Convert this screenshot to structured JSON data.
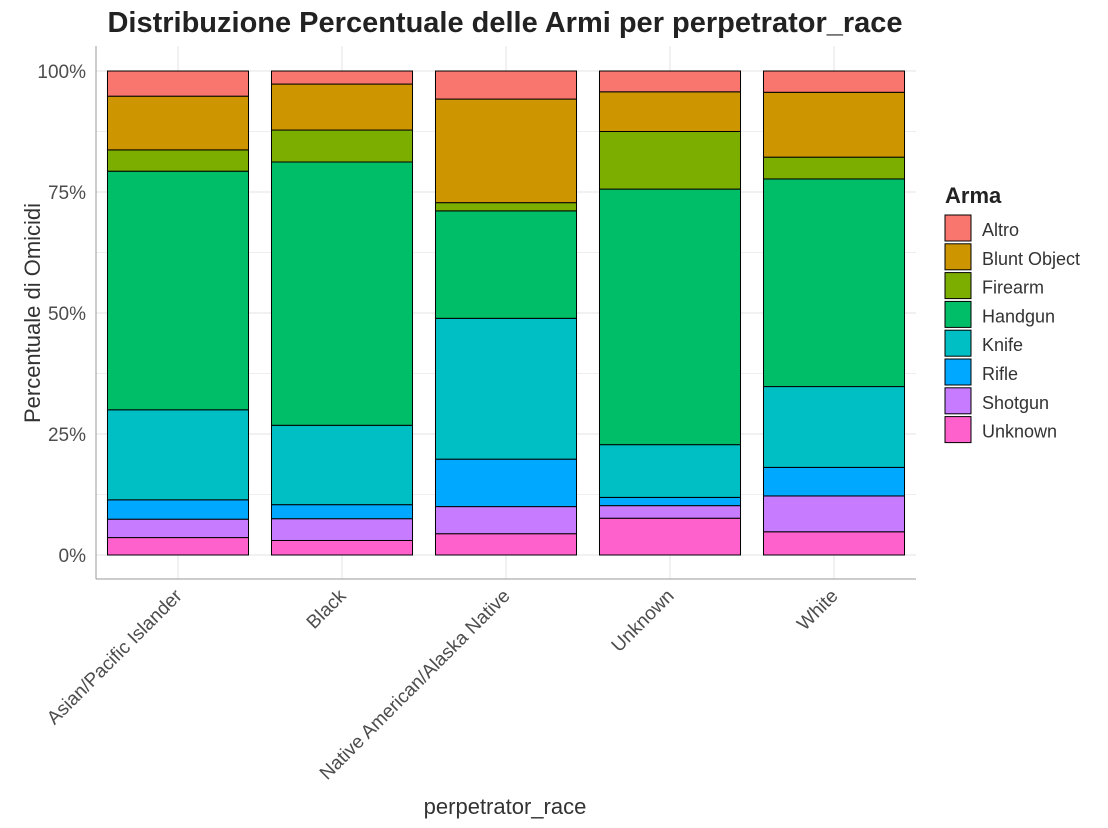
{
  "chart_data": {
    "type": "bar",
    "stacked": "percent",
    "title": "Distribuzione Percentuale delle Armi per perpetrator_race",
    "xlabel": "perpetrator_race",
    "ylabel": "Percentuale di Omicidi",
    "ylim": [
      0,
      100
    ],
    "yticks": [
      "0%",
      "25%",
      "50%",
      "75%",
      "100%"
    ],
    "grid": true,
    "legend_position": "right",
    "legend_title": "Arma",
    "categories": [
      "Asian/Pacific Islander",
      "Black",
      "Native American/Alaska Native",
      "Unknown",
      "White"
    ],
    "series": [
      {
        "name": "Altro",
        "color": "#F8766D",
        "values": [
          5.2,
          2.7,
          5.8,
          4.3,
          4.4
        ]
      },
      {
        "name": "Blunt Object",
        "color": "#CD9600",
        "values": [
          11.1,
          9.5,
          21.4,
          8.2,
          13.4
        ]
      },
      {
        "name": "Firearm",
        "color": "#7CAE00",
        "values": [
          4.4,
          6.6,
          1.7,
          11.9,
          4.5
        ]
      },
      {
        "name": "Handgun",
        "color": "#00BE67",
        "values": [
          49.3,
          54.4,
          22.2,
          52.8,
          42.9
        ]
      },
      {
        "name": "Knife",
        "color": "#00BFC4",
        "values": [
          18.6,
          16.4,
          29.1,
          10.9,
          16.7
        ]
      },
      {
        "name": "Rifle",
        "color": "#00A9FF",
        "values": [
          4.0,
          2.9,
          9.8,
          1.7,
          5.9
        ]
      },
      {
        "name": "Shotgun",
        "color": "#C77CFF",
        "values": [
          3.8,
          4.5,
          5.6,
          2.6,
          7.4
        ]
      },
      {
        "name": "Unknown",
        "color": "#FF61CC",
        "values": [
          3.6,
          3.0,
          4.4,
          7.6,
          4.8
        ]
      }
    ]
  }
}
